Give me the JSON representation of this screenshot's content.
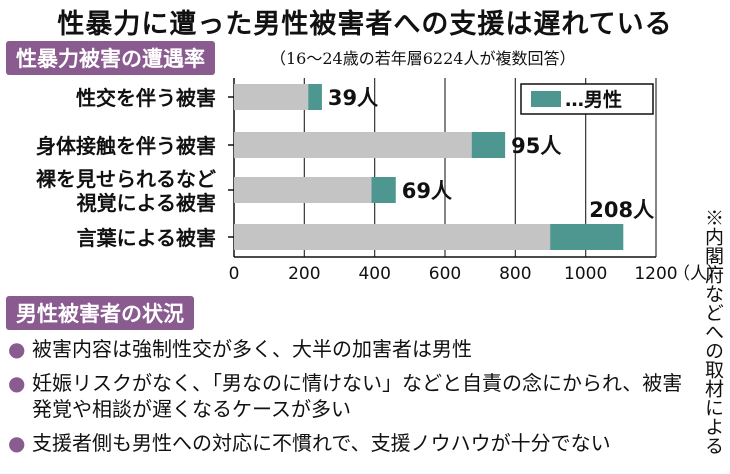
{
  "title": "性暴力に遭った男性被害者への支援は遅れている",
  "section1_label": "性暴力被害の遭遇率",
  "survey_note": "（16～24歳の若年層6224人が複数回答）",
  "section2_label": "男性被害者の状況",
  "side_note": "※内閣府などへの取材による",
  "status_items": [
    "被害内容は強制性交が多く、大半の加害者は男性",
    "妊娠リスクがなく、「男なのに情けない」などと自責の念にかられ、被害発覚や相談が遅くなるケースが多い",
    "支援者側も男性への対応に不慣れで、支援ノウハウが十分でない"
  ],
  "bullet_glyph": "●",
  "colors": {
    "total_bar": "#c4c4c4",
    "male_bar": "#4e9690",
    "tag_bg": "#8a5b8f"
  },
  "chart_data": {
    "type": "bar",
    "orientation": "horizontal",
    "stacked": true,
    "categories": [
      [
        "性交を伴う被害"
      ],
      [
        "身体接触を伴う被害"
      ],
      [
        "裸を見せられるなど",
        "視覚による被害"
      ],
      [
        "言葉による被害"
      ]
    ],
    "series": [
      {
        "name": "",
        "color": "#c4c4c4",
        "values": [
          211,
          676,
          391,
          899
        ]
      },
      {
        "name": "男性",
        "color": "#4e9690",
        "values": [
          39,
          95,
          69,
          208
        ]
      }
    ],
    "data_labels": [
      "39人",
      "95人",
      "69人",
      "208人"
    ],
    "legend": {
      "label": "…男性",
      "position": "top-right"
    },
    "xlim": [
      0,
      1200
    ],
    "xticks": [
      0,
      200,
      400,
      600,
      800,
      1000,
      1200
    ],
    "xunit": "（人）",
    "grid": "vertical"
  }
}
